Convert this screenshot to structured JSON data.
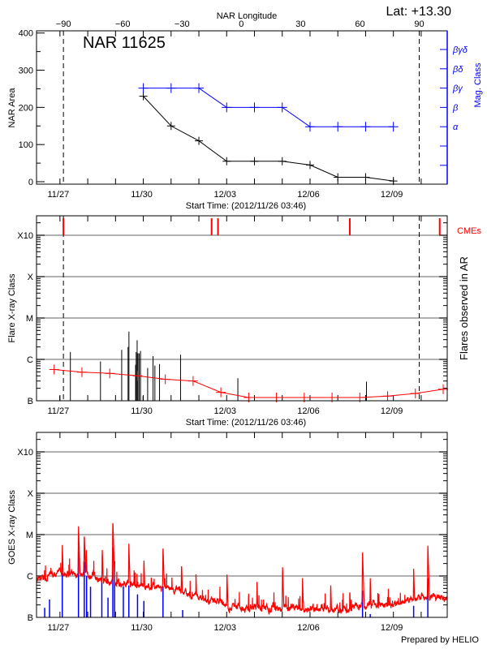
{
  "header": {
    "lat_label": "Lat: +13.30",
    "lon_axis_title": "NAR Longitude",
    "region_title": "NAR 11625",
    "credit": "Prepared by HELIO"
  },
  "colors": {
    "nar_area": "#000000",
    "mag_class": "#0000ff",
    "cme": "#ff0000",
    "nar_flux": "#ff0000",
    "flares": "#000000",
    "goes_flux": "#ff0000",
    "goes_events": "#0000ff",
    "grid": "#999999"
  },
  "chart_data": [
    {
      "type": "line",
      "xlabel": "Start Time: (2012/11/26 03:46)",
      "x_range": [
        "2012-11-26T03:46",
        "2012-12-10T22:30"
      ],
      "x_ticks": [
        {
          "date": "2012-11-27T00:00",
          "label": "11/27"
        },
        {
          "date": "2012-11-30T00:00",
          "label": "11/30"
        },
        {
          "date": "2012-12-03T00:00",
          "label": "12/03"
        },
        {
          "date": "2012-12-06T00:00",
          "label": "12/06"
        },
        {
          "date": "2012-12-09T00:00",
          "label": "12/09"
        }
      ],
      "ylabel": "NAR Area",
      "ylim": [
        0,
        400
      ],
      "y_ticks": [
        0,
        100,
        200,
        300,
        400
      ],
      "y2label": "Mag. Class",
      "y2_categories": [
        "βγδ",
        "βδ",
        "βγ",
        "β",
        "α",
        "",
        ""
      ],
      "top_axis": {
        "title": "NAR Longitude",
        "ticks": [
          -90,
          -60,
          -30,
          0,
          30,
          60,
          90
        ]
      },
      "limb_lines": [
        "2012-11-27T03:00",
        "2012-12-09T22:20"
      ],
      "series": [
        {
          "key": "area",
          "color": "#000000",
          "x": [
            "2012-11-30T00:00",
            "2012-12-01T00:00",
            "2012-12-02T00:00",
            "2012-12-03T00:00",
            "2012-12-04T00:00",
            "2012-12-05T00:00",
            "2012-12-06T00:00",
            "2012-12-07T00:00",
            "2012-12-08T00:00",
            "2012-12-09T00:00"
          ],
          "y": [
            230,
            150,
            110,
            55,
            55,
            55,
            45,
            12,
            12,
            2
          ]
        },
        {
          "key": "mag_class",
          "color": "#0000ff",
          "x": [
            "2012-11-30T00:00",
            "2012-12-01T00:00",
            "2012-12-02T00:00",
            "2012-12-03T00:00",
            "2012-12-04T00:00",
            "2012-12-05T00:00",
            "2012-12-06T00:00",
            "2012-12-07T00:00",
            "2012-12-08T00:00",
            "2012-12-09T00:00"
          ],
          "y": [
            "βγ",
            "βγ",
            "βγ",
            "β",
            "β",
            "β",
            "α",
            "α",
            "α",
            "α"
          ]
        }
      ]
    },
    {
      "type": "bar",
      "xlabel": "Start Time: (2012/11/26 03:46)",
      "ylabel": "Flare X-ray Class",
      "y2label": "Flares observed in AR",
      "y_scale": "log",
      "y_ticks": [
        "B",
        "C",
        "M",
        "X",
        "X10"
      ],
      "grid": true,
      "cme_label": "CMEs",
      "cmes": [
        "2012-11-27T03:00",
        "2012-12-02T11:00",
        "2012-12-02T16:30",
        "2012-12-07T10:20",
        "2012-12-10T16:00"
      ],
      "limb_lines": [
        "2012-11-27T03:00",
        "2012-12-09T22:20"
      ],
      "flares": [
        [
          "2012-11-26T23:50",
          "B1.3"
        ],
        [
          "2012-11-27T09:00",
          "C1.5"
        ],
        [
          "2012-11-28T11:00",
          "B8.9"
        ],
        [
          "2012-11-29T05:20",
          "C1.7"
        ],
        [
          "2012-11-29T10:50",
          "C2.0"
        ],
        [
          "2012-11-29T11:35",
          "C4.7"
        ],
        [
          "2012-11-29T17:20",
          "B7.4"
        ],
        [
          "2012-11-29T17:50",
          "C1.5"
        ],
        [
          "2012-11-29T18:40",
          "C2.9"
        ],
        [
          "2012-11-29T19:25",
          "C1.4"
        ],
        [
          "2012-11-29T20:30",
          "C1.4"
        ],
        [
          "2012-11-29T21:35",
          "C1.6"
        ],
        [
          "2012-11-29T23:45",
          "B1.3"
        ],
        [
          "2012-11-30T03:45",
          "B6.2"
        ],
        [
          "2012-11-30T08:25",
          "C1.2"
        ],
        [
          "2012-11-30T10:00",
          "B7.1"
        ],
        [
          "2012-11-30T14:00",
          "B7.7"
        ],
        [
          "2012-12-01T08:10",
          "C1.3"
        ],
        [
          "2012-12-03T09:40",
          "B3.5"
        ],
        [
          "2012-12-08T00:45",
          "B2.9"
        ]
      ],
      "nar_flux": [
        [
          "2012-11-26T19:00",
          "B5.7"
        ],
        [
          "2012-11-27T19:00",
          "B4.9"
        ],
        [
          "2012-11-28T19:00",
          "B4.6"
        ],
        [
          "2012-11-29T19:00",
          "B4.0"
        ],
        [
          "2012-11-30T19:00",
          "B3.3"
        ],
        [
          "2012-12-01T19:00",
          "B3.0"
        ],
        [
          "2012-12-02T19:00",
          "B1.6"
        ],
        [
          "2012-12-03T19:00",
          "B1.2"
        ],
        [
          "2012-12-04T19:00",
          "B1.2"
        ],
        [
          "2012-12-05T19:00",
          "B1.2"
        ],
        [
          "2012-12-06T19:00",
          "B1.2"
        ],
        [
          "2012-12-07T19:00",
          "B1.2"
        ],
        [
          "2012-12-08T19:00",
          "B1.3"
        ],
        [
          "2012-12-09T19:00",
          "B1.5"
        ],
        [
          "2012-12-10T19:00",
          "B1.9"
        ]
      ]
    },
    {
      "type": "line",
      "ylabel": "GOES X-ray Class",
      "y_scale": "log",
      "y_ticks": [
        "B",
        "C",
        "M",
        "X",
        "X10"
      ],
      "grid": true,
      "background": [
        [
          "2012-11-26T03:46",
          "B6.4"
        ],
        [
          "2012-11-27T00:00",
          "C1.0"
        ],
        [
          "2012-11-28T00:00",
          "B8.6"
        ],
        [
          "2012-11-29T00:00",
          "B5.5"
        ],
        [
          "2012-11-30T00:00",
          "B4.7"
        ],
        [
          "2012-12-01T00:00",
          "B4.1"
        ],
        [
          "2012-12-02T00:00",
          "B2.6"
        ],
        [
          "2012-12-03T00:00",
          "B1.6"
        ],
        [
          "2012-12-04T00:00",
          "B1.4"
        ],
        [
          "2012-12-05T00:00",
          "B1.5"
        ],
        [
          "2012-12-06T00:00",
          "B1.3"
        ],
        [
          "2012-12-07T00:00",
          "B1.3"
        ],
        [
          "2012-12-08T00:00",
          "B1.6"
        ],
        [
          "2012-12-09T00:00",
          "B1.6"
        ],
        [
          "2012-12-10T00:00",
          "B2.6"
        ],
        [
          "2012-12-10T22:30",
          "B2.2"
        ]
      ],
      "peaks": [
        [
          "2012-11-27T02:00",
          "C6.0"
        ],
        [
          "2012-11-27T16:00",
          "M1.7"
        ],
        [
          "2012-11-27T21:00",
          "M1.1"
        ],
        [
          "2012-11-27T22:40",
          "C4.5"
        ],
        [
          "2012-11-28T12:30",
          "C4.9"
        ],
        [
          "2012-11-28T21:40",
          "M2.3"
        ],
        [
          "2012-11-29T11:30",
          "C6.0"
        ],
        [
          "2012-11-30T00:30",
          "C2.7"
        ],
        [
          "2012-11-30T17:00",
          "C5.6"
        ],
        [
          "2012-12-01T09:00",
          "C2.1"
        ],
        [
          "2012-12-01T21:30",
          "C1.1"
        ],
        [
          "2012-12-03T00:15",
          "C1.2"
        ],
        [
          "2012-12-04T02:10",
          "B7.2"
        ],
        [
          "2012-12-05T00:15",
          "C1.8"
        ],
        [
          "2012-12-05T17:30",
          "B8.9"
        ],
        [
          "2012-12-06T17:50",
          "B6.8"
        ],
        [
          "2012-12-07T10:20",
          "B4.9"
        ],
        [
          "2012-12-07T21:20",
          "C4.0"
        ],
        [
          "2012-12-08T04:00",
          "B9.5"
        ],
        [
          "2012-12-09T17:30",
          "C1.5"
        ],
        [
          "2012-12-10T05:45",
          "C5.6"
        ]
      ],
      "events": [
        [
          "2012-11-26T10:50",
          "B1.7"
        ],
        [
          "2012-11-26T15:00",
          "B2.7"
        ],
        [
          "2012-11-27T02:00",
          "C1.2"
        ],
        [
          "2012-11-27T16:00",
          "C3.9"
        ],
        [
          "2012-11-27T21:00",
          "C2.2"
        ],
        [
          "2012-11-27T23:00",
          "C1.0"
        ],
        [
          "2012-11-28T02:25",
          "B5.5"
        ],
        [
          "2012-11-28T12:10",
          "B6.9"
        ],
        [
          "2012-11-28T17:30",
          "B3.0"
        ],
        [
          "2012-11-28T21:40",
          "C4.9"
        ],
        [
          "2012-11-28T23:10",
          "C2.3"
        ],
        [
          "2012-11-29T06:45",
          "B5.6"
        ],
        [
          "2012-11-29T11:30",
          "B5.9"
        ],
        [
          "2012-11-29T19:00",
          "B3.6"
        ],
        [
          "2012-11-30T00:30",
          "B2.5"
        ],
        [
          "2012-11-30T17:00",
          "B5.6"
        ],
        [
          "2012-12-01T10:00",
          "B1.5"
        ],
        [
          "2012-12-07T21:20",
          "B4.4"
        ],
        [
          "2012-12-08T04:00",
          "B1.2"
        ],
        [
          "2012-12-09T17:30",
          "B1.9"
        ],
        [
          "2012-12-10T05:45",
          "B8.9"
        ]
      ]
    }
  ]
}
